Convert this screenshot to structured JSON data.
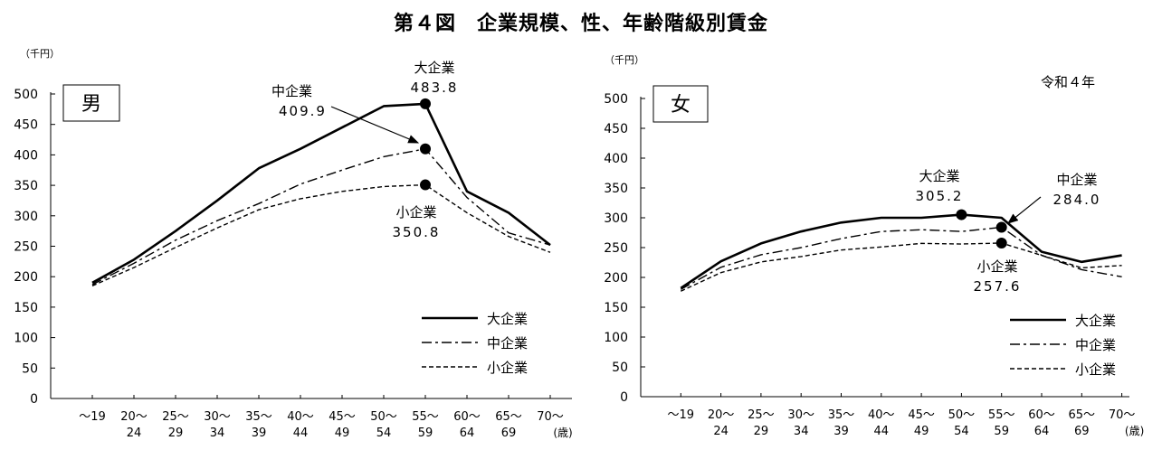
{
  "title": "第４図　企業規模、性、年齢階級別賃金",
  "chart_data": [
    {
      "type": "line",
      "panel_label": "男",
      "unit_label": "（千円）",
      "age_unit": "(歳)",
      "ylim": [
        0,
        500
      ],
      "yticks": [
        0,
        50,
        100,
        150,
        200,
        250,
        300,
        350,
        400,
        450,
        500
      ],
      "categories": [
        [
          "～19",
          ""
        ],
        [
          "20～",
          "24"
        ],
        [
          "25～",
          "29"
        ],
        [
          "30～",
          "34"
        ],
        [
          "35～",
          "39"
        ],
        [
          "40～",
          "44"
        ],
        [
          "45～",
          "49"
        ],
        [
          "50～",
          "54"
        ],
        [
          "55～",
          "59"
        ],
        [
          "60～",
          "64"
        ],
        [
          "65～",
          "69"
        ],
        [
          "70～",
          ""
        ]
      ],
      "series": [
        {
          "name": "大企業",
          "style": "solid",
          "values": [
            190,
            228,
            275,
            325,
            378,
            410,
            445,
            480,
            483.8,
            340,
            305,
            252
          ]
        },
        {
          "name": "中企業",
          "style": "dashdot",
          "values": [
            187,
            222,
            260,
            292,
            320,
            352,
            375,
            397,
            409.9,
            330,
            272,
            252
          ]
        },
        {
          "name": "小企業",
          "style": "dashed",
          "values": [
            185,
            215,
            248,
            280,
            310,
            328,
            340,
            348,
            350.8,
            305,
            266,
            240
          ]
        }
      ],
      "annotations": [
        {
          "name": "大企業",
          "value": "483.8"
        },
        {
          "name": "中企業",
          "value": "409.9"
        },
        {
          "name": "小企業",
          "value": "350.8"
        }
      ],
      "grid": false,
      "legend": "bottom-right"
    },
    {
      "type": "line",
      "panel_label": "女",
      "unit_label": "（千円）",
      "year_note": "令和４年",
      "age_unit": "(歳)",
      "ylim": [
        0,
        500
      ],
      "yticks": [
        0,
        50,
        100,
        150,
        200,
        250,
        300,
        350,
        400,
        450,
        500
      ],
      "categories": [
        [
          "～19",
          ""
        ],
        [
          "20～",
          "24"
        ],
        [
          "25～",
          "29"
        ],
        [
          "30～",
          "34"
        ],
        [
          "35～",
          "39"
        ],
        [
          "40～",
          "44"
        ],
        [
          "45～",
          "49"
        ],
        [
          "50～",
          "54"
        ],
        [
          "55～",
          "59"
        ],
        [
          "60～",
          "64"
        ],
        [
          "65～",
          "69"
        ],
        [
          "70～",
          ""
        ]
      ],
      "series": [
        {
          "name": "大企業",
          "style": "solid",
          "values": [
            182,
            227,
            257,
            277,
            292,
            300,
            300,
            305.2,
            300,
            243,
            226,
            237
          ]
        },
        {
          "name": "中企業",
          "style": "dashdot",
          "values": [
            180,
            217,
            238,
            250,
            265,
            277,
            280,
            277,
            284.0,
            237,
            213,
            201
          ]
        },
        {
          "name": "小企業",
          "style": "dashed",
          "values": [
            177,
            208,
            226,
            235,
            246,
            251,
            257,
            256,
            257.6,
            237,
            216,
            220
          ]
        }
      ],
      "annotations": [
        {
          "name": "大企業",
          "value": "305.2"
        },
        {
          "name": "中企業",
          "value": "284.0"
        },
        {
          "name": "小企業",
          "value": "257.6"
        }
      ],
      "grid": false,
      "legend": "bottom-right"
    }
  ]
}
